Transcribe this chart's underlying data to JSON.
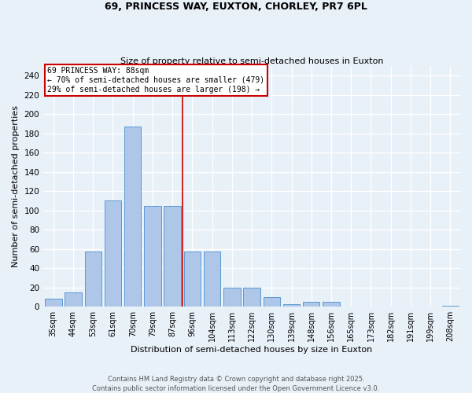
{
  "title1": "69, PRINCESS WAY, EUXTON, CHORLEY, PR7 6PL",
  "title2": "Size of property relative to semi-detached houses in Euxton",
  "xlabel": "Distribution of semi-detached houses by size in Euxton",
  "ylabel": "Number of semi-detached properties",
  "bar_labels": [
    "35sqm",
    "44sqm",
    "53sqm",
    "61sqm",
    "70sqm",
    "79sqm",
    "87sqm",
    "96sqm",
    "104sqm",
    "113sqm",
    "122sqm",
    "130sqm",
    "139sqm",
    "148sqm",
    "156sqm",
    "165sqm",
    "173sqm",
    "182sqm",
    "191sqm",
    "199sqm",
    "208sqm"
  ],
  "bar_values": [
    8,
    15,
    57,
    110,
    187,
    105,
    105,
    57,
    57,
    20,
    20,
    10,
    3,
    5,
    5,
    0,
    0,
    0,
    0,
    0,
    1
  ],
  "bar_color": "#aec6e8",
  "bar_edge_color": "#5b9bd5",
  "property_label": "69 PRINCESS WAY: 88sqm",
  "annotation_line1": "← 70% of semi-detached houses are smaller (479)",
  "annotation_line2": "29% of semi-detached houses are larger (198) →",
  "vline_color": "#cc0000",
  "annotation_box_edge_color": "#cc0000",
  "ylim": [
    0,
    250
  ],
  "yticks": [
    0,
    20,
    40,
    60,
    80,
    100,
    120,
    140,
    160,
    180,
    200,
    220,
    240
  ],
  "footer": "Contains HM Land Registry data © Crown copyright and database right 2025.\nContains public sector information licensed under the Open Government Licence v3.0.",
  "background_color": "#e8f0f8",
  "grid_color": "#ffffff",
  "vline_x_index": 6.5
}
